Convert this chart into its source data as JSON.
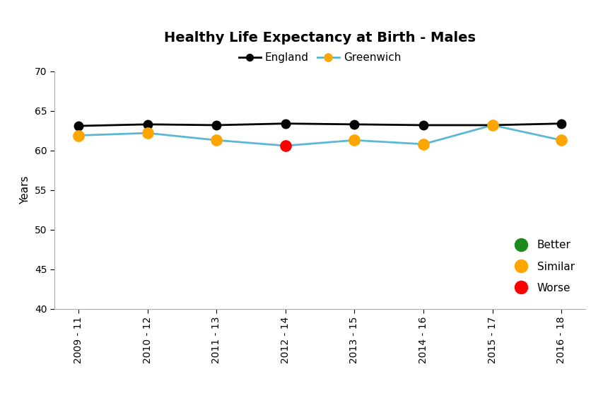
{
  "title": "Healthy Life Expectancy at Birth - Males",
  "ylabel": "Years",
  "x_labels": [
    "2009 - 11",
    "2010 - 12",
    "2011 - 13",
    "2012 - 14",
    "2013 - 15",
    "2014 - 16",
    "2015 - 17",
    "2016 - 18"
  ],
  "england_values": [
    63.1,
    63.3,
    63.2,
    63.4,
    63.3,
    63.2,
    63.2,
    63.4
  ],
  "greenwich_values": [
    61.9,
    62.2,
    61.3,
    60.6,
    61.3,
    60.8,
    63.2,
    61.3
  ],
  "greenwich_colors": [
    "#FFA500",
    "#FFA500",
    "#FFA500",
    "#FF0000",
    "#FFA500",
    "#FFA500",
    "#FFA500",
    "#FFA500"
  ],
  "england_line_color": "#000000",
  "greenwich_line_color": "#5BB8D4",
  "ylim": [
    40,
    70
  ],
  "yticks": [
    40,
    45,
    50,
    55,
    60,
    65,
    70
  ],
  "england_marker_color": "#000000",
  "england_marker_size": 9,
  "greenwich_marker_size": 11,
  "legend_top_labels": [
    "England",
    "Greenwich"
  ],
  "legend_bottom": [
    {
      "label": "Better",
      "color": "#1E8A1E"
    },
    {
      "label": "Similar",
      "color": "#FFA500"
    },
    {
      "label": "Worse",
      "color": "#FF0000"
    }
  ],
  "background_color": "#ffffff",
  "title_fontsize": 14,
  "axis_label_fontsize": 11,
  "tick_fontsize": 10
}
